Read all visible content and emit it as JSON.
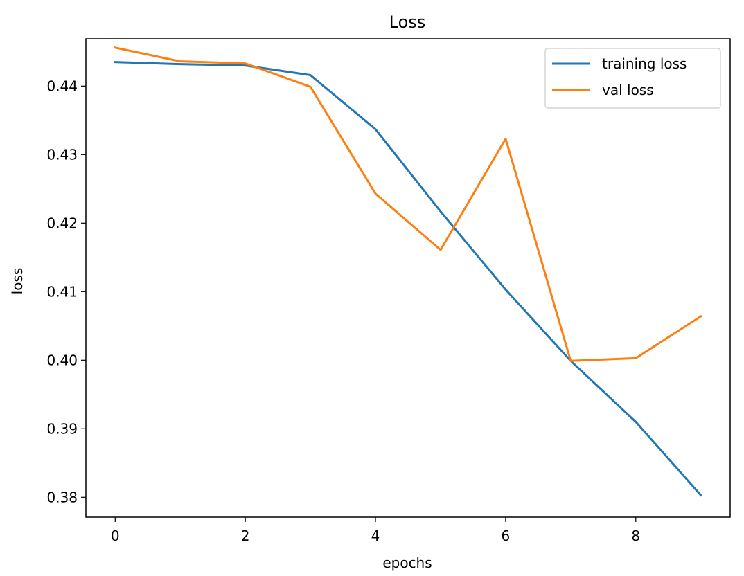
{
  "chart_data": {
    "type": "line",
    "title": "Loss",
    "xlabel": "epochs",
    "ylabel": "loss",
    "x": [
      0,
      1,
      2,
      3,
      4,
      5,
      6,
      7,
      8,
      9
    ],
    "xlim": [
      -0.45,
      9.45
    ],
    "ylim": [
      0.3771,
      0.4469
    ],
    "xticks": [
      0,
      2,
      4,
      6,
      8
    ],
    "yticks": [
      0.38,
      0.39,
      0.4,
      0.41,
      0.42,
      0.43,
      0.44
    ],
    "ytick_labels": [
      "0.38",
      "0.39",
      "0.40",
      "0.41",
      "0.42",
      "0.43",
      "0.44"
    ],
    "grid": false,
    "legend_position": "upper right",
    "series": [
      {
        "name": "training loss",
        "color": "#1f77b4",
        "values": [
          0.4435,
          0.4432,
          0.443,
          0.4416,
          0.4337,
          0.4217,
          0.4103,
          0.3999,
          0.391,
          0.3803
        ]
      },
      {
        "name": "val loss",
        "color": "#ff7f0e",
        "values": [
          0.4456,
          0.4436,
          0.4433,
          0.4399,
          0.4243,
          0.4161,
          0.4323,
          0.3999,
          0.4003,
          0.4064
        ]
      }
    ]
  }
}
